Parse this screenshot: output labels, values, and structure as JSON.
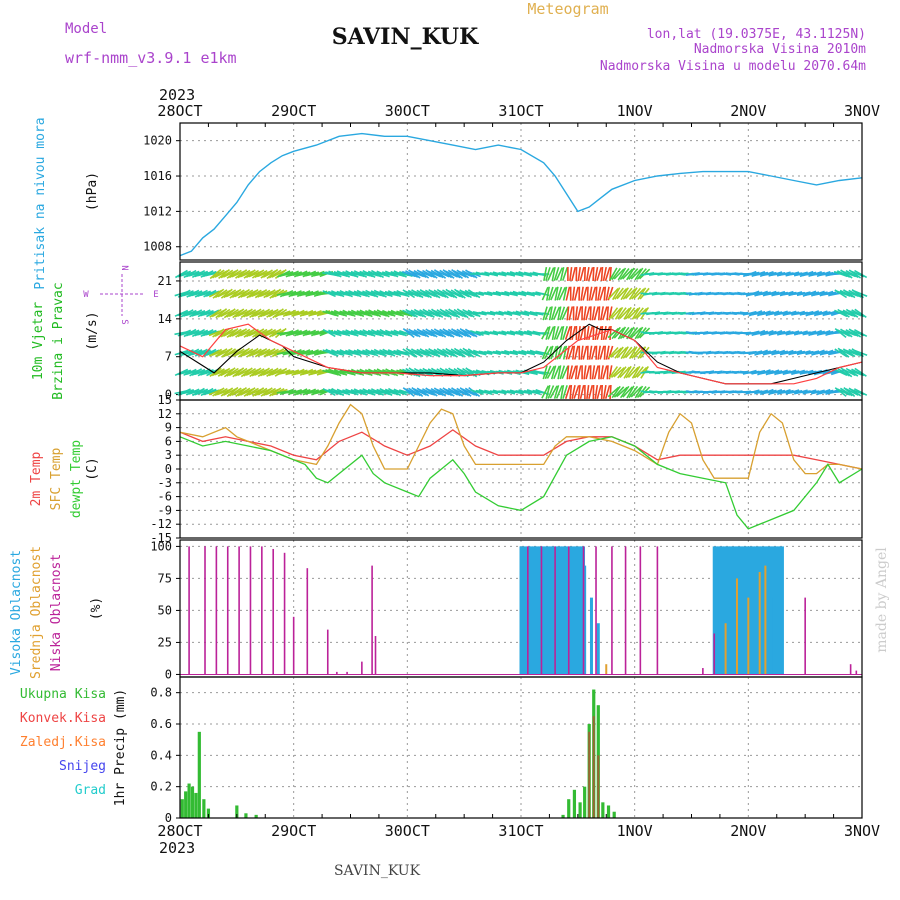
{
  "header": {
    "model_label": "Model",
    "model_name": "wrf-nmm_v3.9.1 e1km",
    "title": "SAVIN_KUK",
    "subtitle": "Meteogram",
    "coords": "lon,lat (19.0375E, 43.1125N)",
    "altitude": "Nadmorska Visina 2010m",
    "model_altitude": "Nadmorska Visina u modelu 2070.64m",
    "year_top": "2023",
    "year_bottom": "2023",
    "footer": "SAVIN_KUK",
    "credit": "made by Angel"
  },
  "colors": {
    "pressure": "#2aa8e0",
    "wind_speed": "#000000",
    "gust": "#ff4040",
    "t2m": "#ee4444",
    "tsfc": "#d8a030",
    "dewpoint": "#33cc33",
    "high_cloud": "#2aa8e0",
    "mid_cloud": "#e0a030",
    "low_cloud": "#bb2299",
    "total_precip": "#33bb33",
    "conv_precip": "#ee4444",
    "freezing_rain": "#ff8030",
    "snow": "#4444ee",
    "hail": "#22cccc",
    "model_text": "#aa44cc",
    "subtitle_text": "#e0b050"
  },
  "icons": [
    "wind-compass-icon"
  ],
  "chart_data": [
    {
      "type": "line",
      "panel": "pressure",
      "ylabel": "(hPa)",
      "side_labels": [
        "Pritisak na nivou mora"
      ],
      "ylim": [
        1006.5,
        1022
      ],
      "yticks": [
        1008,
        1012,
        1016,
        1020
      ],
      "grid": true,
      "x_ticks": [
        "28OCT",
        "29OCT",
        "30OCT",
        "31OCT",
        "1NOV",
        "2NOV",
        "3NOV"
      ],
      "x": [
        0,
        0.1,
        0.2,
        0.3,
        0.4,
        0.5,
        0.6,
        0.7,
        0.8,
        0.9,
        1.0,
        1.2,
        1.4,
        1.6,
        1.8,
        2.0,
        2.2,
        2.4,
        2.6,
        2.8,
        3.0,
        3.2,
        3.3,
        3.4,
        3.5,
        3.6,
        3.7,
        3.8,
        4.0,
        4.2,
        4.4,
        4.6,
        4.8,
        5.0,
        5.2,
        5.4,
        5.6,
        5.8,
        6.0
      ],
      "y": [
        1007.0,
        1007.5,
        1009.0,
        1010.0,
        1011.5,
        1013.0,
        1015.0,
        1016.5,
        1017.5,
        1018.3,
        1018.8,
        1019.5,
        1020.5,
        1020.8,
        1020.5,
        1020.5,
        1020.0,
        1019.5,
        1019.0,
        1019.5,
        1019.0,
        1017.5,
        1016.0,
        1014.0,
        1012.0,
        1012.5,
        1013.5,
        1014.5,
        1015.5,
        1016.0,
        1016.3,
        1016.5,
        1016.5,
        1016.5,
        1016.0,
        1015.5,
        1015.0,
        1015.5,
        1015.8
      ]
    },
    {
      "type": "line",
      "panel": "wind",
      "ylabel": "(m/s)",
      "side_labels": [
        "10m Vjetar",
        "Brzina i Pravac"
      ],
      "compass": {
        "n": "N",
        "e": "E",
        "w": "W",
        "s": "S"
      },
      "ylim": [
        -1,
        24.5
      ],
      "yticks": [
        0,
        7,
        14,
        21
      ],
      "grid": true,
      "series": [
        {
          "name": "speed",
          "x": [
            0,
            0.15,
            0.3,
            0.5,
            0.7,
            0.9,
            1.0,
            1.3,
            1.6,
            1.9,
            2.2,
            2.5,
            2.8,
            3.0,
            3.2,
            3.4,
            3.6,
            3.7,
            3.8,
            4.0,
            4.2,
            4.4,
            4.6,
            4.8,
            5.0,
            5.2,
            5.4,
            5.6,
            5.8,
            6.0
          ],
          "y": [
            8,
            6,
            4,
            8,
            11,
            9,
            7,
            5,
            4,
            4,
            4,
            3.5,
            4,
            4,
            6,
            10,
            13,
            12,
            12,
            10,
            6,
            4,
            3,
            2,
            2,
            2,
            3,
            4,
            5,
            6
          ]
        },
        {
          "name": "gust",
          "x": [
            0,
            0.2,
            0.4,
            0.6,
            0.8,
            1.0,
            1.3,
            1.6,
            1.9,
            2.2,
            2.5,
            2.8,
            3.0,
            3.2,
            3.5,
            3.8,
            4.0,
            4.2,
            4.4,
            4.6,
            4.8,
            5.0,
            5.2,
            5.4,
            5.6,
            5.8,
            6.0
          ],
          "y": [
            9,
            7,
            12,
            13,
            10,
            8,
            5,
            4,
            4,
            3.5,
            3.5,
            4,
            4,
            5,
            10,
            12,
            10,
            5,
            4,
            3,
            2,
            2,
            2,
            2,
            3,
            5,
            6
          ]
        }
      ],
      "wind_field": [
        {
          "t0": 0.0,
          "t1": 0.3,
          "dir": 250,
          "spd": 9
        },
        {
          "t0": 0.3,
          "t1": 0.9,
          "dir": 240,
          "spd": 17
        },
        {
          "t0": 0.9,
          "t1": 1.3,
          "dir": 255,
          "spd": 15
        },
        {
          "t0": 1.3,
          "t1": 2.0,
          "dir": 290,
          "spd": 11
        },
        {
          "t0": 2.0,
          "t1": 2.6,
          "dir": 300,
          "spd": 8
        },
        {
          "t0": 2.6,
          "t1": 3.2,
          "dir": 280,
          "spd": 10
        },
        {
          "t0": 3.2,
          "t1": 3.4,
          "dir": 200,
          "spd": 14
        },
        {
          "t0": 3.4,
          "t1": 3.8,
          "dir": 190,
          "spd": 23
        },
        {
          "t0": 3.8,
          "t1": 4.1,
          "dir": 220,
          "spd": 16
        },
        {
          "t0": 4.1,
          "t1": 4.5,
          "dir": 270,
          "spd": 10
        },
        {
          "t0": 4.5,
          "t1": 5.0,
          "dir": 90,
          "spd": 5
        },
        {
          "t0": 5.0,
          "t1": 5.8,
          "dir": 80,
          "spd": 6
        },
        {
          "t0": 5.8,
          "t1": 6.0,
          "dir": 300,
          "spd": 9
        }
      ]
    },
    {
      "type": "line",
      "panel": "temperature",
      "ylabel": "(C)",
      "side_labels": [
        "2m Temp",
        "SFC Temp",
        "dewpt Temp"
      ],
      "ylim": [
        -15,
        15
      ],
      "yticks": [
        15,
        12,
        9,
        6,
        3,
        0,
        -3,
        -6,
        -9,
        -12,
        -15
      ],
      "grid": true,
      "series": [
        {
          "name": "2m Temp",
          "x": [
            0,
            0.2,
            0.4,
            0.6,
            0.8,
            1.0,
            1.2,
            1.4,
            1.6,
            1.8,
            2.0,
            2.2,
            2.4,
            2.6,
            2.8,
            3.0,
            3.2,
            3.4,
            3.6,
            3.8,
            4.0,
            4.2,
            4.4,
            4.6,
            4.8,
            5.0,
            5.2,
            5.4,
            5.6,
            5.8,
            6.0
          ],
          "y": [
            8,
            6,
            7,
            6,
            5,
            3,
            2,
            6,
            8,
            5,
            3,
            5,
            8.5,
            5,
            3,
            3,
            3,
            6,
            7,
            7,
            5,
            2,
            3,
            3,
            3,
            3,
            3,
            3,
            2,
            1,
            0
          ]
        },
        {
          "name": "SFC Temp",
          "x": [
            0,
            0.2,
            0.4,
            0.5,
            0.6,
            0.8,
            1.0,
            1.2,
            1.3,
            1.4,
            1.5,
            1.6,
            1.7,
            1.8,
            2.0,
            2.1,
            2.2,
            2.3,
            2.4,
            2.5,
            2.6,
            2.7,
            2.8,
            3.0,
            3.2,
            3.3,
            3.4,
            3.6,
            3.8,
            4.0,
            4.2,
            4.3,
            4.4,
            4.5,
            4.6,
            4.7,
            4.8,
            5.0,
            5.1,
            5.2,
            5.3,
            5.4,
            5.5,
            5.6,
            5.7,
            5.8,
            6.0
          ],
          "y": [
            8,
            7,
            9,
            7,
            6,
            4,
            2,
            1,
            5,
            10,
            14,
            12,
            5,
            0,
            0,
            5,
            10,
            13,
            12,
            5,
            1,
            1,
            1,
            1,
            1,
            5,
            7,
            7,
            6,
            4,
            1,
            8,
            12,
            10,
            2,
            -2,
            -2,
            -2,
            8,
            12,
            10,
            2,
            -1,
            -1,
            1,
            1,
            0
          ]
        },
        {
          "name": "dewpt Temp",
          "x": [
            0,
            0.2,
            0.4,
            0.6,
            0.8,
            1.0,
            1.1,
            1.2,
            1.3,
            1.4,
            1.6,
            1.7,
            1.8,
            2.0,
            2.1,
            2.2,
            2.4,
            2.5,
            2.6,
            2.8,
            3.0,
            3.2,
            3.4,
            3.6,
            3.8,
            4.0,
            4.2,
            4.4,
            4.6,
            4.8,
            4.9,
            5.0,
            5.2,
            5.4,
            5.6,
            5.7,
            5.8,
            6.0
          ],
          "y": [
            7,
            5,
            6,
            5,
            4,
            2,
            1,
            -2,
            -3,
            -1,
            3,
            -1,
            -3,
            -5,
            -6,
            -2,
            2,
            -1,
            -5,
            -8,
            -9,
            -6,
            3,
            6,
            7,
            5,
            1,
            -1,
            -2,
            -3,
            -10,
            -13,
            -11,
            -9,
            -3,
            1,
            -3,
            0
          ]
        }
      ]
    },
    {
      "type": "bar",
      "panel": "clouds",
      "ylabel": "(%)",
      "side_labels": [
        "Visoka Oblacnost",
        "Srednja Oblacnost",
        "Niska Oblacnost"
      ],
      "ylim": [
        -2,
        105
      ],
      "yticks": [
        0,
        25,
        50,
        75,
        100
      ],
      "grid": true,
      "series": [
        {
          "name": "Visoka Oblacnost",
          "segments": [
            [
              3.0,
              3.55,
              100
            ],
            [
              4.7,
              5.3,
              100
            ]
          ],
          "x": [
            3.56,
            3.62,
            3.68,
            4.72,
            4.9,
            5.2
          ],
          "y": [
            85,
            60,
            40,
            90,
            70,
            60
          ]
        },
        {
          "name": "Srednja Oblacnost",
          "x": [
            3.75,
            4.8,
            4.9,
            5.0,
            5.1,
            5.15
          ],
          "y": [
            8,
            40,
            75,
            60,
            80,
            85
          ]
        },
        {
          "name": "Niska Oblacnost",
          "x": [
            0.08,
            0.22,
            0.32,
            0.42,
            0.52,
            0.62,
            0.72,
            0.82,
            0.92,
            1.0,
            1.12,
            1.3,
            1.38,
            1.47,
            1.6,
            1.69,
            1.72,
            3.06,
            3.18,
            3.3,
            3.42,
            3.55,
            3.66,
            3.8,
            3.92,
            4.05,
            4.2,
            4.6,
            4.7,
            5.5,
            5.9,
            5.95
          ],
          "y": [
            100,
            100,
            100,
            100,
            100,
            100,
            100,
            98,
            95,
            45,
            83,
            35,
            2,
            2,
            10,
            85,
            30,
            100,
            100,
            100,
            100,
            100,
            100,
            100,
            100,
            100,
            100,
            5,
            32,
            60,
            8,
            3
          ]
        }
      ]
    },
    {
      "type": "bar",
      "panel": "precipitation",
      "ylabel": "1hr Precip (mm)",
      "side_labels": [
        "Ukupna Kisa",
        "Konvek.Kisa",
        "Zaledj.Kisa",
        "Snijeg",
        "Grad"
      ],
      "ylim": [
        0,
        0.9
      ],
      "yticks": [
        0,
        0.2,
        0.4,
        0.6,
        0.8
      ],
      "grid": true,
      "x_ticks": [
        "28OCT",
        "29OCT",
        "30OCT",
        "31OCT",
        "1NOV",
        "2NOV",
        "3NOV"
      ],
      "series": [
        {
          "name": "Ukupna Kisa",
          "x": [
            0.02,
            0.05,
            0.08,
            0.11,
            0.14,
            0.17,
            0.21,
            0.25,
            0.5,
            0.58,
            0.67,
            3.37,
            3.42,
            3.47,
            3.52,
            3.56,
            3.6,
            3.64,
            3.68,
            3.72,
            3.77,
            3.82
          ],
          "y": [
            0.12,
            0.17,
            0.22,
            0.2,
            0.16,
            0.55,
            0.12,
            0.06,
            0.08,
            0.03,
            0.02,
            0.02,
            0.12,
            0.18,
            0.1,
            0.2,
            0.6,
            0.82,
            0.72,
            0.1,
            0.08,
            0.04
          ]
        },
        {
          "name": "Konvek.Kisa",
          "x": [
            3.6,
            3.64,
            3.68
          ],
          "y": [
            0.55,
            0.65,
            0.4
          ]
        }
      ]
    }
  ]
}
